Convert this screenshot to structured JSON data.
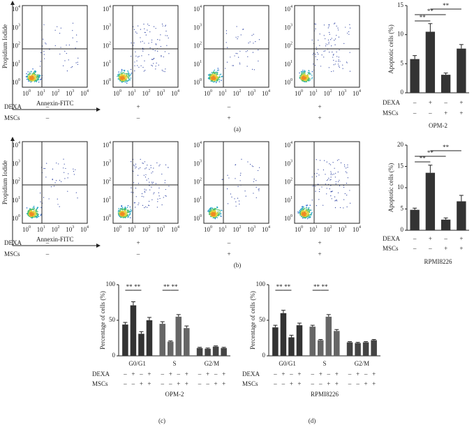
{
  "figure": {
    "flow_axes": {
      "base": "10",
      "exponents": [
        0,
        1,
        2,
        3,
        4
      ],
      "ylabel": "Propidium Iodide",
      "xlabel": "Annexin-FITC"
    },
    "panels": [
      {
        "label": "(a)",
        "rows": [
          {
            "name": "DEXA",
            "signs": [
              "–",
              "+",
              "–",
              "+"
            ]
          },
          {
            "name": "MSCs",
            "signs": [
              "–",
              "–",
              "+",
              "+"
            ]
          }
        ]
      },
      {
        "label": "(b)",
        "rows": [
          {
            "name": "DEXA",
            "signs": [
              "–",
              "+",
              "–",
              "+"
            ]
          },
          {
            "name": "MSCs",
            "signs": [
              "–",
              "–",
              "+",
              "+"
            ]
          }
        ]
      }
    ]
  },
  "chart_data": [
    {
      "type": "bar",
      "ylabel": "Apoptotic cells (%)",
      "subtitle": "OPM-2",
      "values": [
        5.8,
        10.5,
        3.1,
        7.6
      ],
      "errors": [
        0.6,
        1.4,
        0.3,
        0.7
      ],
      "color": "#333333",
      "ylim": [
        0,
        15
      ],
      "yticks": [
        0,
        5,
        10,
        15
      ],
      "annotations": [
        "**",
        "**",
        "**"
      ],
      "rows": [
        {
          "name": "DEXA",
          "signs": [
            "–",
            "+",
            "–",
            "+"
          ]
        },
        {
          "name": "MSCs",
          "signs": [
            "–",
            "–",
            "+",
            "+"
          ]
        }
      ]
    },
    {
      "type": "bar",
      "ylabel": "Apoptotic cells (%)",
      "subtitle": "RPMI8226",
      "values": [
        4.8,
        13.5,
        2.5,
        6.8
      ],
      "errors": [
        0.4,
        1.8,
        0.4,
        1.4
      ],
      "color": "#333333",
      "ylim": [
        0,
        20
      ],
      "yticks": [
        0,
        5,
        10,
        15,
        20
      ],
      "annotations": [
        "**",
        "**",
        "**"
      ],
      "rows": [
        {
          "name": "DEXA",
          "signs": [
            "–",
            "+",
            "–",
            "+"
          ]
        },
        {
          "name": "MSCs",
          "signs": [
            "–",
            "–",
            "+",
            "+"
          ]
        }
      ]
    },
    {
      "type": "grouped_bar",
      "label": "(c)",
      "ylabel": "Percentage of cells (%)",
      "subtitle": "OPM-2",
      "categories": [
        "G0/G1",
        "S",
        "G2/M"
      ],
      "category_colors": [
        "#333333",
        "#666666",
        "#444444"
      ],
      "series": [
        {
          "values": [
            44,
            45,
            11
          ],
          "errors": [
            3,
            3,
            1
          ]
        },
        {
          "values": [
            71,
            20,
            10
          ],
          "errors": [
            5,
            1,
            1
          ]
        },
        {
          "values": [
            31,
            55,
            13
          ],
          "errors": [
            3,
            3,
            1
          ]
        },
        {
          "values": [
            50,
            39,
            11
          ],
          "errors": [
            4,
            3,
            1
          ]
        }
      ],
      "ylim": [
        0,
        100
      ],
      "yticks": [
        0,
        50,
        100
      ],
      "annotations": [
        "**",
        "**",
        "**",
        "**"
      ],
      "rows": [
        {
          "name": "DEXA",
          "signs": [
            "–",
            "+",
            "–",
            "+"
          ]
        },
        {
          "name": "MSCs",
          "signs": [
            "–",
            "–",
            "+",
            "+"
          ]
        }
      ]
    },
    {
      "type": "grouped_bar",
      "label": "(d)",
      "ylabel": "Percentage of cells (%)",
      "subtitle": "RPMI8226",
      "categories": [
        "G0/G1",
        "S",
        "G2/M"
      ],
      "category_colors": [
        "#333333",
        "#666666",
        "#444444"
      ],
      "series": [
        {
          "values": [
            40,
            41,
            19
          ],
          "errors": [
            3,
            2,
            1
          ]
        },
        {
          "values": [
            60,
            22,
            18
          ],
          "errors": [
            4,
            1,
            1
          ]
        },
        {
          "values": [
            26,
            55,
            19
          ],
          "errors": [
            3,
            3,
            1
          ]
        },
        {
          "values": [
            43,
            35,
            22
          ],
          "errors": [
            3,
            2,
            1
          ]
        }
      ],
      "ylim": [
        0,
        100
      ],
      "yticks": [
        0,
        50,
        100
      ],
      "annotations": [
        "**",
        "**",
        "**",
        "**"
      ],
      "rows": [
        {
          "name": "DEXA",
          "signs": [
            "–",
            "+",
            "–",
            "+"
          ]
        },
        {
          "name": "MSCs",
          "signs": [
            "–",
            "–",
            "+",
            "+"
          ]
        }
      ]
    }
  ]
}
